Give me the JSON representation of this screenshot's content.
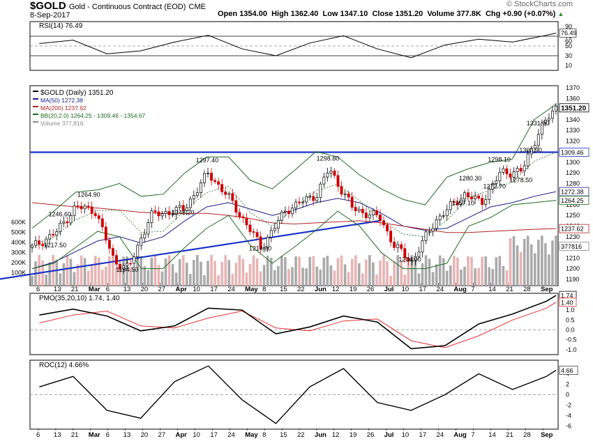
{
  "header": {
    "symbol": "$GOLD",
    "name": "Gold - Continuous Contract (EOD)",
    "exchange": "CME",
    "date": "8-Sep-2017",
    "watermark": "© StockCharts.com",
    "quote": [
      {
        "label": "Open",
        "value": "1354.00"
      },
      {
        "label": "High",
        "value": "1362.40"
      },
      {
        "label": "Low",
        "value": "1347.10"
      },
      {
        "label": "Close",
        "value": "1351.20"
      },
      {
        "label": "Volume",
        "value": "377.8K"
      },
      {
        "label": "Chg",
        "value": "+0.90 (+0.07%)"
      }
    ]
  },
  "colors": {
    "up": "#000000",
    "down": "#cc0000",
    "ma50": "#1a1a8c",
    "ma200": "#b22222",
    "bb": "#1e6b1e",
    "trend": "#1733c8",
    "volume_up": "#aaaaaa",
    "volume_down": "#e8b4b4",
    "pmo": "#000000",
    "pmo_signal": "#e83030",
    "rsi": "#000000"
  },
  "chart_data": [
    {
      "type": "line",
      "title": "RSI(14) 76.49",
      "ylim": [
        0,
        100
      ],
      "yticks": [
        10,
        30,
        50,
        60,
        70,
        90
      ],
      "levels": [
        70,
        30
      ],
      "last_value": 76.49,
      "x": [
        "2017-02-06",
        "2017-02-20",
        "2017-03-06",
        "2017-03-20",
        "2017-04-03",
        "2017-04-17",
        "2017-05-01",
        "2017-05-15",
        "2017-05-29",
        "2017-06-12",
        "2017-06-26",
        "2017-07-10",
        "2017-07-24",
        "2017-08-07",
        "2017-08-21",
        "2017-09-04",
        "2017-09-08"
      ],
      "values": [
        55,
        62,
        34,
        40,
        58,
        72,
        44,
        30,
        56,
        71,
        44,
        26,
        52,
        64,
        58,
        72,
        76.49
      ]
    },
    {
      "type": "line",
      "title": "$GOLD (Daily) 1351.20",
      "ylim": [
        1184,
        1372
      ],
      "yticks": [
        1190,
        1200,
        1210,
        1220,
        1230,
        1240,
        1250,
        1260,
        1270,
        1280,
        1290,
        1300,
        1310,
        1320,
        1330,
        1340,
        1350,
        1360,
        1370
      ],
      "horizontal_line": 1309.46,
      "right_labels": [
        {
          "label": "1351.20",
          "value": 1351.2,
          "style": "price"
        },
        {
          "label": "1309.46",
          "value": 1309.46,
          "style": "hline"
        },
        {
          "label": "1272.38",
          "value": 1272.38,
          "style": "ma50"
        },
        {
          "label": "1264.25",
          "value": 1264.25,
          "style": "bb"
        },
        {
          "label": "1237.62",
          "value": 1237.62,
          "style": "ma200"
        },
        {
          "label": "377816",
          "value": 1221,
          "style": "volume"
        }
      ],
      "legend": [
        {
          "label": "$GOLD (Daily) 1351.20",
          "color": "#000000"
        },
        {
          "label": "MA(50) 1272.38",
          "color": "#1a1a8c"
        },
        {
          "label": "MA(200) 1237.62",
          "color": "#b22222"
        },
        {
          "label": "BB(20,2.0) 1264.25 - 1309.46 - 1354.67",
          "color": "#1e6b1e"
        },
        {
          "label": "Volume 377,816",
          "color": "#888888"
        }
      ],
      "volume_ticks": [
        "600K",
        "500K",
        "400K",
        "300K",
        "200K",
        "100K"
      ],
      "x_labels": [
        "6",
        "13",
        "21",
        "Mar",
        "6",
        "13",
        "20",
        "27",
        "Apr",
        "10",
        "17",
        "24",
        "May",
        "8",
        "15",
        "22",
        "Jun",
        "12",
        "19",
        "26",
        "Jul",
        "10",
        "17",
        "24",
        "Aug",
        "7",
        "14",
        "21",
        "28",
        "Sep"
      ],
      "x_labels_bold": [
        "Mar",
        "Apr",
        "May",
        "Jun",
        "Jul",
        "Aug",
        "Sep"
      ],
      "annotations": [
        {
          "text": "1217.50",
          "date": "2017-02-13",
          "value": 1217.5
        },
        {
          "text": "1246.60",
          "date": "2017-02-15",
          "value": 1246.6
        },
        {
          "text": "1264.90",
          "date": "2017-02-27",
          "value": 1264.9
        },
        {
          "text": "1194.50",
          "date": "2017-03-15",
          "value": 1194.5
        },
        {
          "text": "1248.20",
          "date": "2017-04-07",
          "value": 1248.2
        },
        {
          "text": "1297.40",
          "date": "2017-04-17",
          "value": 1297.4
        },
        {
          "text": "1214.30",
          "date": "2017-05-09",
          "value": 1214.3
        },
        {
          "text": "1298.80",
          "date": "2017-06-06",
          "value": 1298.8
        },
        {
          "text": "1204.00",
          "date": "2017-07-10",
          "value": 1204.0
        },
        {
          "text": "1257.10",
          "date": "2017-08-01",
          "value": 1257.1
        },
        {
          "text": "1280.30",
          "date": "2017-08-04",
          "value": 1280.3
        },
        {
          "text": "1272.70",
          "date": "2017-08-14",
          "value": 1272.7
        },
        {
          "text": "1298.10",
          "date": "2017-08-16",
          "value": 1298.1
        },
        {
          "text": "1278.50",
          "date": "2017-08-25",
          "value": 1278.5
        },
        {
          "text": "1306.90",
          "date": "2017-08-29",
          "value": 1306.9
        },
        {
          "text": "1331.90",
          "date": "2017-09-01",
          "value": 1331.9
        }
      ],
      "trendline": [
        {
          "date": "2016-12-28",
          "value": 1182
        },
        {
          "date": "2017-06-27",
          "value": 1245
        }
      ],
      "series": [
        {
          "name": "$GOLD",
          "values_date": [
            "2017-02-03",
            "2017-02-13",
            "2017-02-21",
            "2017-03-01",
            "2017-03-09",
            "2017-03-15",
            "2017-03-24",
            "2017-04-07",
            "2017-04-17",
            "2017-04-26",
            "2017-05-09",
            "2017-05-19",
            "2017-06-01",
            "2017-06-06",
            "2017-06-16",
            "2017-06-27",
            "2017-07-03",
            "2017-07-10",
            "2017-07-20",
            "2017-08-01",
            "2017-08-08",
            "2017-08-16",
            "2017-08-25",
            "2017-09-01",
            "2017-09-08"
          ],
          "values": [
            1220,
            1234,
            1258,
            1255,
            1207,
            1200,
            1250,
            1256,
            1290,
            1265,
            1220,
            1255,
            1270,
            1294,
            1256,
            1248,
            1222,
            1206,
            1245,
            1270,
            1262,
            1290,
            1292,
            1330,
            1351.2
          ]
        },
        {
          "name": "MA(50)",
          "values": [
            1200,
            1206,
            1216,
            1226,
            1230,
            1224,
            1230,
            1245,
            1258,
            1262,
            1256,
            1250,
            1255,
            1262,
            1266,
            1262,
            1252,
            1240,
            1236,
            1238,
            1248,
            1258,
            1262,
            1268,
            1272.38
          ]
        },
        {
          "name": "MA(200)",
          "values": [
            1262,
            1260,
            1258,
            1257,
            1255,
            1253,
            1252,
            1252,
            1252,
            1250,
            1247,
            1243,
            1242,
            1243,
            1244,
            1245,
            1243,
            1240,
            1237,
            1234,
            1234,
            1235,
            1236,
            1237,
            1237.62
          ]
        },
        {
          "name": "BB(20,2.0) upper",
          "values": [
            1238,
            1254,
            1272,
            1274,
            1280,
            1268,
            1270,
            1290,
            1305,
            1305,
            1283,
            1275,
            1292,
            1310,
            1305,
            1288,
            1275,
            1265,
            1260,
            1286,
            1294,
            1300,
            1303,
            1340,
            1354.67
          ]
        },
        {
          "name": "BB(20,2.0) lower",
          "values": [
            1200,
            1205,
            1220,
            1235,
            1230,
            1200,
            1200,
            1220,
            1238,
            1250,
            1222,
            1205,
            1220,
            1236,
            1254,
            1240,
            1215,
            1200,
            1200,
            1205,
            1240,
            1248,
            1260,
            1262,
            1264.25
          ]
        }
      ]
    },
    {
      "type": "line",
      "title": "PMO(35,20,10) 1.74, 1.40",
      "ylim": [
        -1.25,
        1.85
      ],
      "yticks": [
        -1.0,
        -0.5,
        0.0,
        0.5,
        1.0,
        1.5
      ],
      "x": [
        "2017-02-06",
        "2017-02-20",
        "2017-03-06",
        "2017-03-20",
        "2017-04-03",
        "2017-04-17",
        "2017-05-01",
        "2017-05-15",
        "2017-05-29",
        "2017-06-12",
        "2017-06-26",
        "2017-07-10",
        "2017-07-24",
        "2017-08-07",
        "2017-08-21",
        "2017-09-04",
        "2017-09-08"
      ],
      "series": [
        {
          "name": "PMO",
          "values": [
            0.75,
            1.05,
            0.7,
            -0.05,
            0.2,
            1.1,
            1.0,
            -0.2,
            0.15,
            0.7,
            0.4,
            -0.95,
            -0.8,
            0.3,
            0.8,
            1.45,
            1.74
          ]
        },
        {
          "name": "Signal",
          "values": [
            0.35,
            0.75,
            0.95,
            0.2,
            0.1,
            0.6,
            0.95,
            0.1,
            -0.05,
            0.45,
            0.55,
            -0.55,
            -0.9,
            -0.3,
            0.5,
            1.1,
            1.4
          ]
        }
      ]
    },
    {
      "type": "line",
      "title": "ROC(12) 4.66%",
      "ylim": [
        -6.6,
        6.6
      ],
      "yticks": [
        -6,
        -4,
        -2,
        0,
        2,
        4
      ],
      "x": [
        "2017-02-06",
        "2017-02-20",
        "2017-03-06",
        "2017-03-20",
        "2017-04-03",
        "2017-04-17",
        "2017-05-01",
        "2017-05-15",
        "2017-05-29",
        "2017-06-12",
        "2017-06-26",
        "2017-07-10",
        "2017-07-24",
        "2017-08-07",
        "2017-08-21",
        "2017-09-04",
        "2017-09-08"
      ],
      "values": [
        1.5,
        3.5,
        -3,
        -4.5,
        2.5,
        5.5,
        -1,
        -5.5,
        1.5,
        5,
        -1.5,
        -3,
        0,
        4,
        1,
        3.5,
        4.66
      ]
    }
  ]
}
